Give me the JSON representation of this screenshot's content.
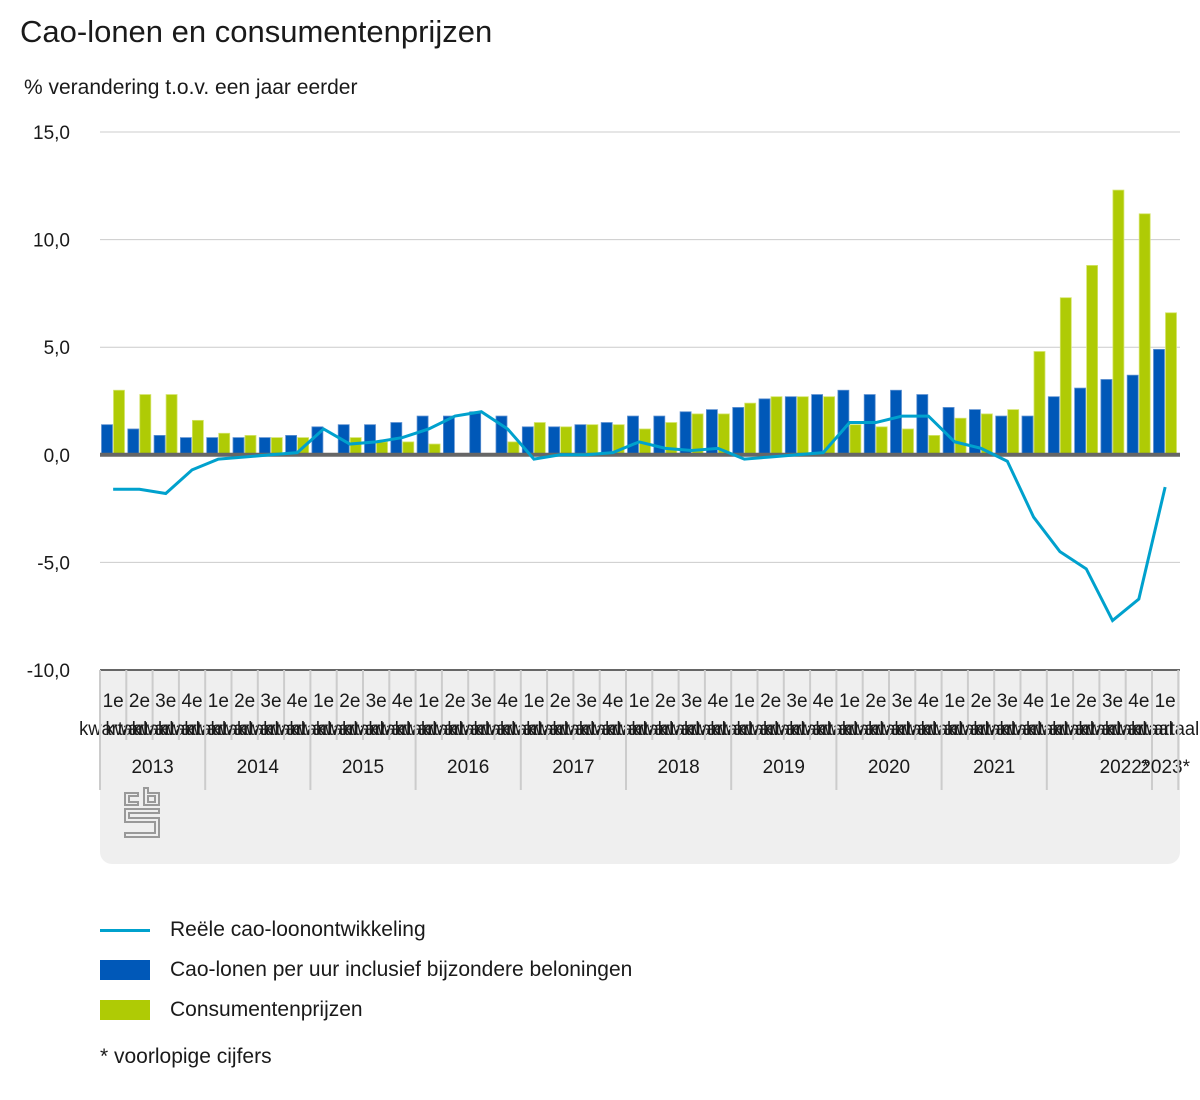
{
  "header": {
    "title": "Cao-lonen en consumentenprijzen",
    "subtitle": "% verandering t.o.v. een jaar eerder"
  },
  "colors": {
    "line": "#00a1cd",
    "wages": "#0058b8",
    "prices": "#afcb05",
    "grid": "#cccccc",
    "zero_axis": "#666666",
    "axis_panel": "#efefef",
    "logo": "#999999"
  },
  "chart_data": {
    "type": "bar",
    "title": "Cao-lonen en consumentenprijzen",
    "ylabel": "% verandering t.o.v. een jaar eerder",
    "xlabel": "",
    "ylim": [
      -10,
      15
    ],
    "yticks": [
      15,
      10,
      5,
      0,
      -5,
      -10
    ],
    "ytick_labels": [
      "15,0",
      "10,0",
      "5,0",
      "0,0",
      "-5,0",
      "-10,0"
    ],
    "grid": true,
    "legend_position": "bottom",
    "quarter_labels": [
      "1e",
      "2e",
      "3e",
      "4e"
    ],
    "quarter_suffix": "kwartaal",
    "years": [
      {
        "label": "2013",
        "quarters": 4
      },
      {
        "label": "2014",
        "quarters": 4
      },
      {
        "label": "2015",
        "quarters": 4
      },
      {
        "label": "2016",
        "quarters": 4
      },
      {
        "label": "2017",
        "quarters": 4
      },
      {
        "label": "2018",
        "quarters": 4
      },
      {
        "label": "2019",
        "quarters": 4
      },
      {
        "label": "2020",
        "quarters": 4
      },
      {
        "label": "2021",
        "quarters": 4
      },
      {
        "label": "2022*",
        "quarters": 4
      },
      {
        "label": "2023*",
        "quarters": 1
      }
    ],
    "categories": [
      "2013 1e kwartaal",
      "2013 2e kwartaal",
      "2013 3e kwartaal",
      "2013 4e kwartaal",
      "2014 1e kwartaal",
      "2014 2e kwartaal",
      "2014 3e kwartaal",
      "2014 4e kwartaal",
      "2015 1e kwartaal",
      "2015 2e kwartaal",
      "2015 3e kwartaal",
      "2015 4e kwartaal",
      "2016 1e kwartaal",
      "2016 2e kwartaal",
      "2016 3e kwartaal",
      "2016 4e kwartaal",
      "2017 1e kwartaal",
      "2017 2e kwartaal",
      "2017 3e kwartaal",
      "2017 4e kwartaal",
      "2018 1e kwartaal",
      "2018 2e kwartaal",
      "2018 3e kwartaal",
      "2018 4e kwartaal",
      "2019 1e kwartaal",
      "2019 2e kwartaal",
      "2019 3e kwartaal",
      "2019 4e kwartaal",
      "2020 1e kwartaal",
      "2020 2e kwartaal",
      "2020 3e kwartaal",
      "2020 4e kwartaal",
      "2021 1e kwartaal",
      "2021 2e kwartaal",
      "2021 3e kwartaal",
      "2021 4e kwartaal",
      "2022* 1e kwartaal",
      "2022* 2e kwartaal",
      "2022* 3e kwartaal",
      "2022* 4e kwartaal",
      "2023* 1e kwartaal"
    ],
    "series": [
      {
        "name": "Reële cao-loonontwikkeling",
        "type": "line",
        "values": [
          -1.6,
          -1.6,
          -1.8,
          -0.7,
          -0.2,
          -0.1,
          0.0,
          0.1,
          1.2,
          0.5,
          0.6,
          0.8,
          1.2,
          1.8,
          2.0,
          1.2,
          -0.2,
          0.0,
          0.0,
          0.1,
          0.6,
          0.3,
          0.2,
          0.3,
          -0.2,
          -0.1,
          0.0,
          0.1,
          1.5,
          1.5,
          1.8,
          1.8,
          0.6,
          0.3,
          -0.3,
          -2.9,
          -4.5,
          -5.3,
          -7.7,
          -6.7,
          -1.5
        ]
      },
      {
        "name": "Cao-lonen per uur inclusief bijzondere beloningen",
        "type": "bar",
        "values": [
          1.4,
          1.2,
          0.9,
          0.8,
          0.8,
          0.8,
          0.8,
          0.9,
          1.3,
          1.4,
          1.4,
          1.5,
          1.8,
          1.8,
          2.0,
          1.8,
          1.3,
          1.3,
          1.4,
          1.5,
          1.8,
          1.8,
          2.0,
          2.1,
          2.2,
          2.6,
          2.7,
          2.8,
          3.0,
          2.8,
          3.0,
          2.8,
          2.2,
          2.1,
          1.8,
          1.8,
          2.7,
          3.1,
          3.5,
          3.7,
          4.9
        ]
      },
      {
        "name": "Consumentenprijzen",
        "type": "bar",
        "values": [
          3.0,
          2.8,
          2.8,
          1.6,
          1.0,
          0.9,
          0.8,
          0.8,
          0.0,
          0.8,
          0.6,
          0.6,
          0.5,
          0.0,
          0.0,
          0.6,
          1.5,
          1.3,
          1.4,
          1.4,
          1.2,
          1.5,
          1.9,
          1.9,
          2.4,
          2.7,
          2.7,
          2.7,
          1.4,
          1.3,
          1.2,
          0.9,
          1.7,
          1.9,
          2.1,
          4.8,
          7.3,
          8.8,
          12.3,
          11.2,
          6.6
        ]
      }
    ]
  },
  "legend": {
    "items": [
      {
        "label": "Reële cao-loonontwikkeling",
        "kind": "line"
      },
      {
        "label": "Cao-lonen per uur inclusief bijzondere beloningen",
        "kind": "box-wages"
      },
      {
        "label": "Consumentenprijzen",
        "kind": "box-prices"
      }
    ]
  },
  "footnote": "* voorlopige cijfers",
  "logo": {
    "icon": "cbs-logo-icon"
  }
}
